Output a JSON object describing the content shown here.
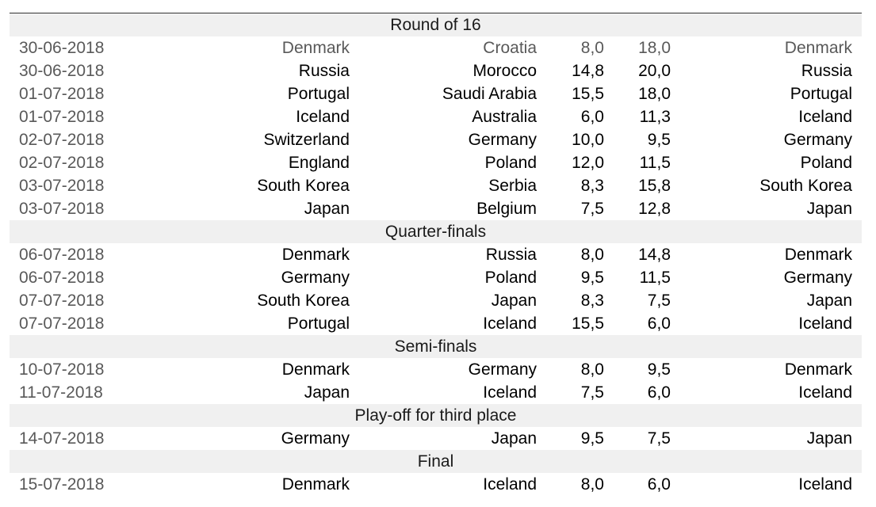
{
  "sections": [
    {
      "title": "Round of 16",
      "rows": [
        {
          "date": "30-06-2018",
          "home": "Denmark",
          "away": "Croatia",
          "s1": "8,0",
          "s2": "18,0",
          "winner": "Denmark",
          "tone": "grey"
        },
        {
          "date": "30-06-2018",
          "home": "Russia",
          "away": "Morocco",
          "s1": "14,8",
          "s2": "20,0",
          "winner": "Russia",
          "tone": "dark"
        },
        {
          "date": "01-07-2018",
          "home": "Portugal",
          "away": "Saudi Arabia",
          "s1": "15,5",
          "s2": "18,0",
          "winner": "Portugal",
          "tone": "dark"
        },
        {
          "date": "01-07-2018",
          "home": "Iceland",
          "away": "Australia",
          "s1": "6,0",
          "s2": "11,3",
          "winner": "Iceland",
          "tone": "dark"
        },
        {
          "date": "02-07-2018",
          "home": "Switzerland",
          "away": "Germany",
          "s1": "10,0",
          "s2": "9,5",
          "winner": "Germany",
          "tone": "dark"
        },
        {
          "date": "02-07-2018",
          "home": "England",
          "away": "Poland",
          "s1": "12,0",
          "s2": "11,5",
          "winner": "Poland",
          "tone": "dark"
        },
        {
          "date": "03-07-2018",
          "home": "South Korea",
          "away": "Serbia",
          "s1": "8,3",
          "s2": "15,8",
          "winner": "South Korea",
          "tone": "dark"
        },
        {
          "date": "03-07-2018",
          "home": "Japan",
          "away": "Belgium",
          "s1": "7,5",
          "s2": "12,8",
          "winner": "Japan",
          "tone": "dark"
        }
      ]
    },
    {
      "title": "Quarter-finals",
      "rows": [
        {
          "date": "06-07-2018",
          "home": "Denmark",
          "away": "Russia",
          "s1": "8,0",
          "s2": "14,8",
          "winner": "Denmark",
          "tone": "dark"
        },
        {
          "date": "06-07-2018",
          "home": "Germany",
          "away": "Poland",
          "s1": "9,5",
          "s2": "11,5",
          "winner": "Germany",
          "tone": "dark"
        },
        {
          "date": "07-07-2018",
          "home": "South Korea",
          "away": "Japan",
          "s1": "8,3",
          "s2": "7,5",
          "winner": "Japan",
          "tone": "dark"
        },
        {
          "date": "07-07-2018",
          "home": "Portugal",
          "away": "Iceland",
          "s1": "15,5",
          "s2": "6,0",
          "winner": "Iceland",
          "tone": "dark"
        }
      ]
    },
    {
      "title": "Semi-finals",
      "rows": [
        {
          "date": "10-07-2018",
          "home": "Denmark",
          "away": "Germany",
          "s1": "8,0",
          "s2": "9,5",
          "winner": "Denmark",
          "tone": "dark"
        },
        {
          "date": "11-07-2018",
          "home": "Japan",
          "away": "Iceland",
          "s1": "7,5",
          "s2": "6,0",
          "winner": "Iceland",
          "tone": "dark"
        }
      ]
    },
    {
      "title": "Play-off for third place",
      "rows": [
        {
          "date": "14-07-2018",
          "home": "Germany",
          "away": "Japan",
          "s1": "9,5",
          "s2": "7,5",
          "winner": "Japan",
          "tone": "dark"
        }
      ]
    },
    {
      "title": "Final",
      "rows": [
        {
          "date": "15-07-2018",
          "home": "Denmark",
          "away": "Iceland",
          "s1": "8,0",
          "s2": "6,0",
          "winner": "Iceland",
          "tone": "dark"
        }
      ]
    }
  ]
}
